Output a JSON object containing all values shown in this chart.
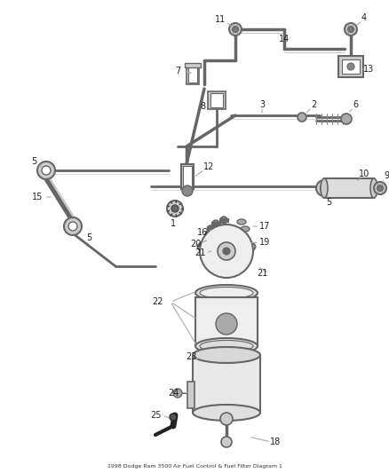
{
  "background_color": "#ffffff",
  "title": "1998 Dodge Ram 3500 Air Fuel Control & Fuel Filter Diagram 1",
  "fig_width": 4.38,
  "fig_height": 5.33,
  "dpi": 100,
  "lc": "#aaaaaa",
  "cc": "#555555",
  "fs": 7.0
}
